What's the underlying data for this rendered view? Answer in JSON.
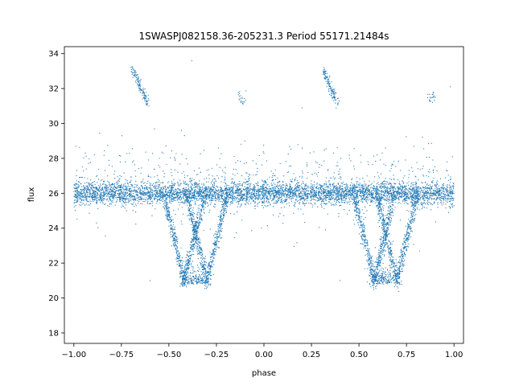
{
  "chart_data": {
    "type": "scatter",
    "title": "1SWASPJ082158.36-205231.3 Period 55171.21484s",
    "xlabel": "phase",
    "ylabel": "flux",
    "xlim": [
      -1.05,
      1.05
    ],
    "ylim": [
      17.4,
      34.4
    ],
    "xticks": [
      -1.0,
      -0.75,
      -0.5,
      -0.25,
      0.0,
      0.25,
      0.5,
      0.75,
      1.0
    ],
    "xtick_labels": [
      "−1.00",
      "−0.75",
      "−0.50",
      "−0.25",
      "0.00",
      "0.25",
      "0.50",
      "0.75",
      "1.00"
    ],
    "yticks": [
      18,
      20,
      22,
      24,
      26,
      28,
      30,
      32,
      34
    ],
    "ytick_labels": [
      "18",
      "20",
      "22",
      "24",
      "26",
      "28",
      "30",
      "32",
      "34"
    ],
    "grid": false,
    "legend": "none",
    "series": [
      {
        "color": "#1f77b4",
        "marker_size": 0.6,
        "baseline_flux": 26.0,
        "eclipses": [
          {
            "center_phase": -0.35,
            "min_flux": 20.8,
            "branch_offsets": [
              -0.07,
              0.05
            ]
          },
          {
            "center_phase": 0.65,
            "min_flux": 20.8,
            "branch_offsets": [
              -0.07,
              0.05
            ]
          }
        ],
        "sample_points": [
          {
            "x": -1.0,
            "y": 26.1
          },
          {
            "x": -0.9,
            "y": 26.0
          },
          {
            "x": -0.8,
            "y": 25.9
          },
          {
            "x": -0.7,
            "y": 26.1
          },
          {
            "x": -0.6,
            "y": 26.0
          },
          {
            "x": -0.52,
            "y": 25.0
          },
          {
            "x": -0.47,
            "y": 23.0
          },
          {
            "x": -0.42,
            "y": 21.5
          },
          {
            "x": -0.37,
            "y": 20.8
          },
          {
            "x": -0.32,
            "y": 21.0
          },
          {
            "x": -0.27,
            "y": 22.5
          },
          {
            "x": -0.22,
            "y": 24.5
          },
          {
            "x": -0.15,
            "y": 26.0
          },
          {
            "x": 0.0,
            "y": 26.0
          },
          {
            "x": 0.15,
            "y": 26.1
          },
          {
            "x": 0.3,
            "y": 26.0
          },
          {
            "x": 0.48,
            "y": 25.0
          },
          {
            "x": 0.53,
            "y": 23.0
          },
          {
            "x": 0.58,
            "y": 21.5
          },
          {
            "x": 0.63,
            "y": 20.8
          },
          {
            "x": 0.68,
            "y": 21.0
          },
          {
            "x": 0.73,
            "y": 22.5
          },
          {
            "x": 0.78,
            "y": 24.5
          },
          {
            "x": 0.85,
            "y": 26.0
          },
          {
            "x": 0.95,
            "y": 25.9
          },
          {
            "x": 1.0,
            "y": 26.0
          },
          {
            "x": -0.68,
            "y": 32.8
          },
          {
            "x": -0.63,
            "y": 31.5
          },
          {
            "x": 0.32,
            "y": 32.8
          },
          {
            "x": 0.37,
            "y": 31.5
          },
          {
            "x": -0.55,
            "y": 28.0
          },
          {
            "x": 0.45,
            "y": 28.0
          },
          {
            "x": -0.6,
            "y": 21.0
          },
          {
            "x": 0.4,
            "y": 21.0
          },
          {
            "x": -0.38,
            "y": 33.6
          },
          {
            "x": 0.98,
            "y": 32.1
          },
          {
            "x": -0.1,
            "y": 29.0
          },
          {
            "x": 0.2,
            "y": 30.9
          }
        ]
      }
    ]
  }
}
